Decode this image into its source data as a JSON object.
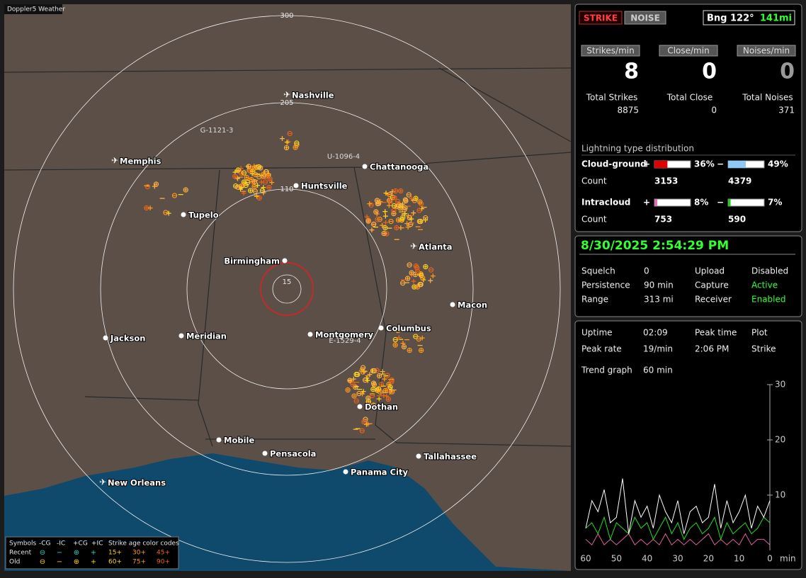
{
  "map": {
    "title": "Doppler5 Weather",
    "ring_labels": [
      15,
      110,
      205,
      300
    ],
    "cities": [
      "Nashville",
      "Memphis",
      "Chattanooga",
      "Huntsville",
      "Tupelo",
      "Atlanta",
      "Birmingham",
      "Macon",
      "Jackson",
      "Meridian",
      "Montgomery",
      "Columbus",
      "Dothan",
      "Mobile",
      "Pensacola",
      "Tallahassee",
      "Panama City",
      "New Orleans"
    ],
    "storm_labels": [
      "G-1121-3",
      "U-1096-4",
      "E-1529-4"
    ],
    "legend": {
      "header": [
        "Symbols",
        "-CG",
        "-IC",
        "+CG",
        "+IC",
        "Strike age color codes"
      ],
      "rows": [
        {
          "label": "Recent",
          "ages": [
            "15+",
            "30+",
            "45+"
          ]
        },
        {
          "label": "Old",
          "ages": [
            "60+",
            "75+",
            "90+"
          ]
        }
      ]
    }
  },
  "panel": {
    "mode_buttons": [
      "STRIKE",
      "NOISE"
    ],
    "bearing": "Bng 122°",
    "distance": "141mi",
    "counters": [
      {
        "label": "Strikes/min",
        "value": 8
      },
      {
        "label": "Close/min",
        "value": 0
      },
      {
        "label": "Noises/min",
        "value": 0
      }
    ],
    "totals": [
      {
        "label": "Total Strikes",
        "value": 8875
      },
      {
        "label": "Total Close",
        "value": 0
      },
      {
        "label": "Total Noises",
        "value": 371
      }
    ],
    "distribution": {
      "title": "Lightning type distribution",
      "count_label": "Count",
      "rows": [
        {
          "label": "Cloud-ground",
          "parts": [
            {
              "sign": "+",
              "percent": 36,
              "percent_label": "36%",
              "count": 3153,
              "color": "#e00000"
            },
            {
              "sign": "−",
              "percent": 49,
              "percent_label": "49%",
              "count": 4379,
              "color": "#8ec8f4"
            }
          ]
        },
        {
          "label": "Intracloud",
          "parts": [
            {
              "sign": "+",
              "percent": 8,
              "percent_label": "8%",
              "count": 753,
              "color": "#e070b0"
            },
            {
              "sign": "−",
              "percent": 7,
              "percent_label": "7%",
              "count": 590,
              "color": "#22cc22"
            }
          ]
        }
      ]
    },
    "datetime": "8/30/2025 2:54:29 PM",
    "status": [
      [
        "Squelch",
        "0",
        "Upload",
        "Disabled"
      ],
      [
        "Persistence",
        "90 min",
        "Capture",
        "Active"
      ],
      [
        "Range",
        "313 mi",
        "Receiver",
        "Enabled"
      ]
    ],
    "stats": [
      [
        "Uptime",
        "02:09",
        "Peak time",
        "Plot"
      ],
      [
        "Peak rate",
        "19/min",
        "2:06 PM",
        "Strike"
      ],
      [
        "Trend graph",
        "60 min"
      ]
    ],
    "trend": {
      "ylim": [
        0,
        30
      ],
      "yticks": [
        10,
        20,
        30
      ],
      "xlim": [
        60,
        0
      ],
      "xticks": [
        60,
        50,
        40,
        30,
        20,
        10,
        0
      ],
      "x_label": "min",
      "x": [
        60,
        58,
        56,
        54,
        52,
        50,
        48,
        46,
        44,
        42,
        40,
        38,
        36,
        34,
        32,
        30,
        28,
        26,
        24,
        22,
        20,
        18,
        16,
        14,
        12,
        10,
        8,
        6,
        4,
        2,
        0
      ],
      "series": [
        {
          "color": "#ffffff",
          "values": [
            4,
            9,
            7,
            11,
            5,
            6,
            13,
            3,
            9,
            6,
            8,
            4,
            10,
            7,
            5,
            9,
            3,
            7,
            8,
            5,
            6,
            12,
            4,
            9,
            5,
            7,
            10,
            4,
            8,
            6,
            9
          ]
        },
        {
          "color": "#22dd22",
          "values": [
            4,
            5,
            3,
            6,
            2,
            5,
            4,
            3,
            6,
            4,
            5,
            2,
            4,
            6,
            3,
            5,
            2,
            4,
            5,
            3,
            4,
            6,
            2,
            5,
            3,
            4,
            5,
            3,
            4,
            6,
            5
          ]
        },
        {
          "color": "#e060a0",
          "values": [
            2,
            1,
            3,
            1,
            2,
            1,
            2,
            3,
            1,
            2,
            1,
            2,
            1,
            3,
            1,
            2,
            1,
            2,
            1,
            2,
            3,
            1,
            2,
            1,
            2,
            1,
            3,
            1,
            2,
            2,
            1
          ]
        }
      ]
    }
  }
}
